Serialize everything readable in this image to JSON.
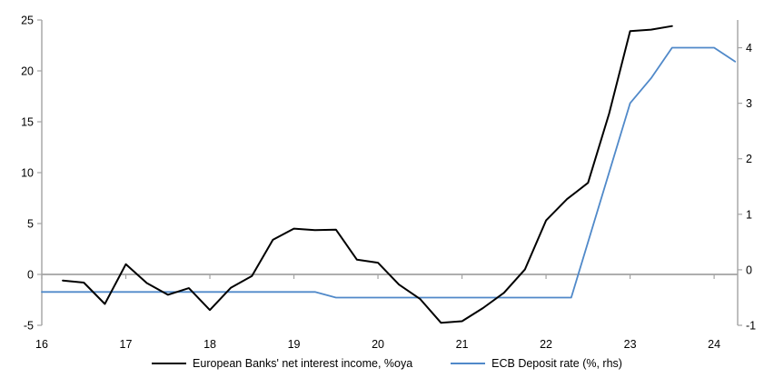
{
  "chart_data": {
    "type": "line",
    "title": "",
    "xlabel": "",
    "ylabel_left": "",
    "ylabel_right": "",
    "grid": "zero-line-only",
    "legend_position": "bottom",
    "background_color": "#ffffff",
    "axis_color": "#a3a3a3",
    "zero_line_color": "#a3a3a3",
    "x_axis": {
      "range": [
        16,
        24.28
      ],
      "ticks": [
        16,
        17,
        18,
        19,
        20,
        21,
        22,
        23,
        24
      ]
    },
    "left_axis": {
      "range": [
        -5,
        25
      ],
      "ticks": [
        25,
        20,
        15,
        10,
        5,
        0,
        -5
      ]
    },
    "right_axis": {
      "range": [
        -1,
        4.5
      ],
      "ticks": [
        4,
        3,
        2,
        1,
        0,
        -1
      ]
    },
    "series": [
      {
        "name": "European Banks' net interest income, %oya",
        "axis": "left",
        "color": "#000000",
        "x": [
          16.25,
          16.5,
          16.75,
          17.0,
          17.25,
          17.5,
          17.75,
          18.0,
          18.25,
          18.5,
          18.75,
          19.0,
          19.25,
          19.5,
          19.75,
          20.0,
          20.25,
          20.5,
          20.75,
          21.0,
          21.25,
          21.5,
          21.75,
          22.0,
          22.25,
          22.5,
          22.75,
          23.0,
          23.25,
          23.5
        ],
        "values": [
          -0.6,
          -0.8,
          -2.9,
          1.0,
          -0.85,
          -2.0,
          -1.35,
          -3.5,
          -1.3,
          -0.15,
          3.4,
          4.5,
          4.35,
          4.4,
          1.45,
          1.15,
          -1.0,
          -2.4,
          -4.75,
          -4.6,
          -3.3,
          -1.8,
          0.5,
          5.3,
          7.4,
          9.0,
          15.8,
          23.9,
          24.05,
          24.4
        ]
      },
      {
        "name": "ECB Deposit rate (%, rhs)",
        "axis": "right",
        "color": "#5089c9",
        "x": [
          16.0,
          19.25,
          19.5,
          22.3,
          23.0,
          23.25,
          23.5,
          24.0,
          24.25
        ],
        "values": [
          -0.4,
          -0.4,
          -0.5,
          -0.5,
          3.0,
          3.45,
          4.0,
          4.0,
          3.75
        ]
      }
    ]
  }
}
